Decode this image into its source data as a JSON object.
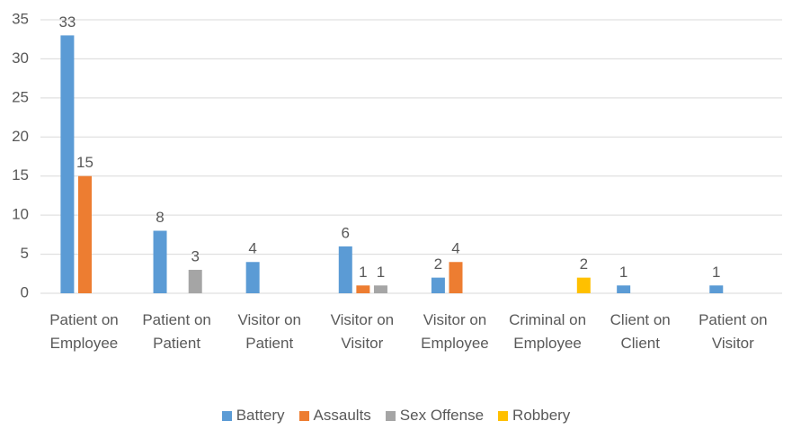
{
  "chart_data": {
    "type": "bar",
    "categories": [
      "Patient on Employee",
      "Patient on Patient",
      "Visitor on Patient",
      "Visitor on Visitor",
      "Visitor on Employee",
      "Criminal on Employee",
      "Client on Client",
      "Patient on Visitor"
    ],
    "series": [
      {
        "name": "Battery",
        "color": "#5b9bd5",
        "values": [
          33,
          8,
          4,
          6,
          2,
          null,
          1,
          1
        ]
      },
      {
        "name": "Assaults",
        "color": "#ed7d31",
        "values": [
          15,
          null,
          null,
          1,
          4,
          null,
          null,
          null
        ]
      },
      {
        "name": "Sex Offense",
        "color": "#a5a5a5",
        "values": [
          null,
          3,
          null,
          1,
          null,
          null,
          null,
          null
        ]
      },
      {
        "name": "Robbery",
        "color": "#ffc000",
        "values": [
          null,
          null,
          null,
          null,
          null,
          2,
          null,
          null
        ]
      }
    ],
    "ylim": [
      0,
      35
    ],
    "yticks": [
      0,
      5,
      10,
      15,
      20,
      25,
      30,
      35
    ],
    "grid": true,
    "legend": "bottom"
  }
}
